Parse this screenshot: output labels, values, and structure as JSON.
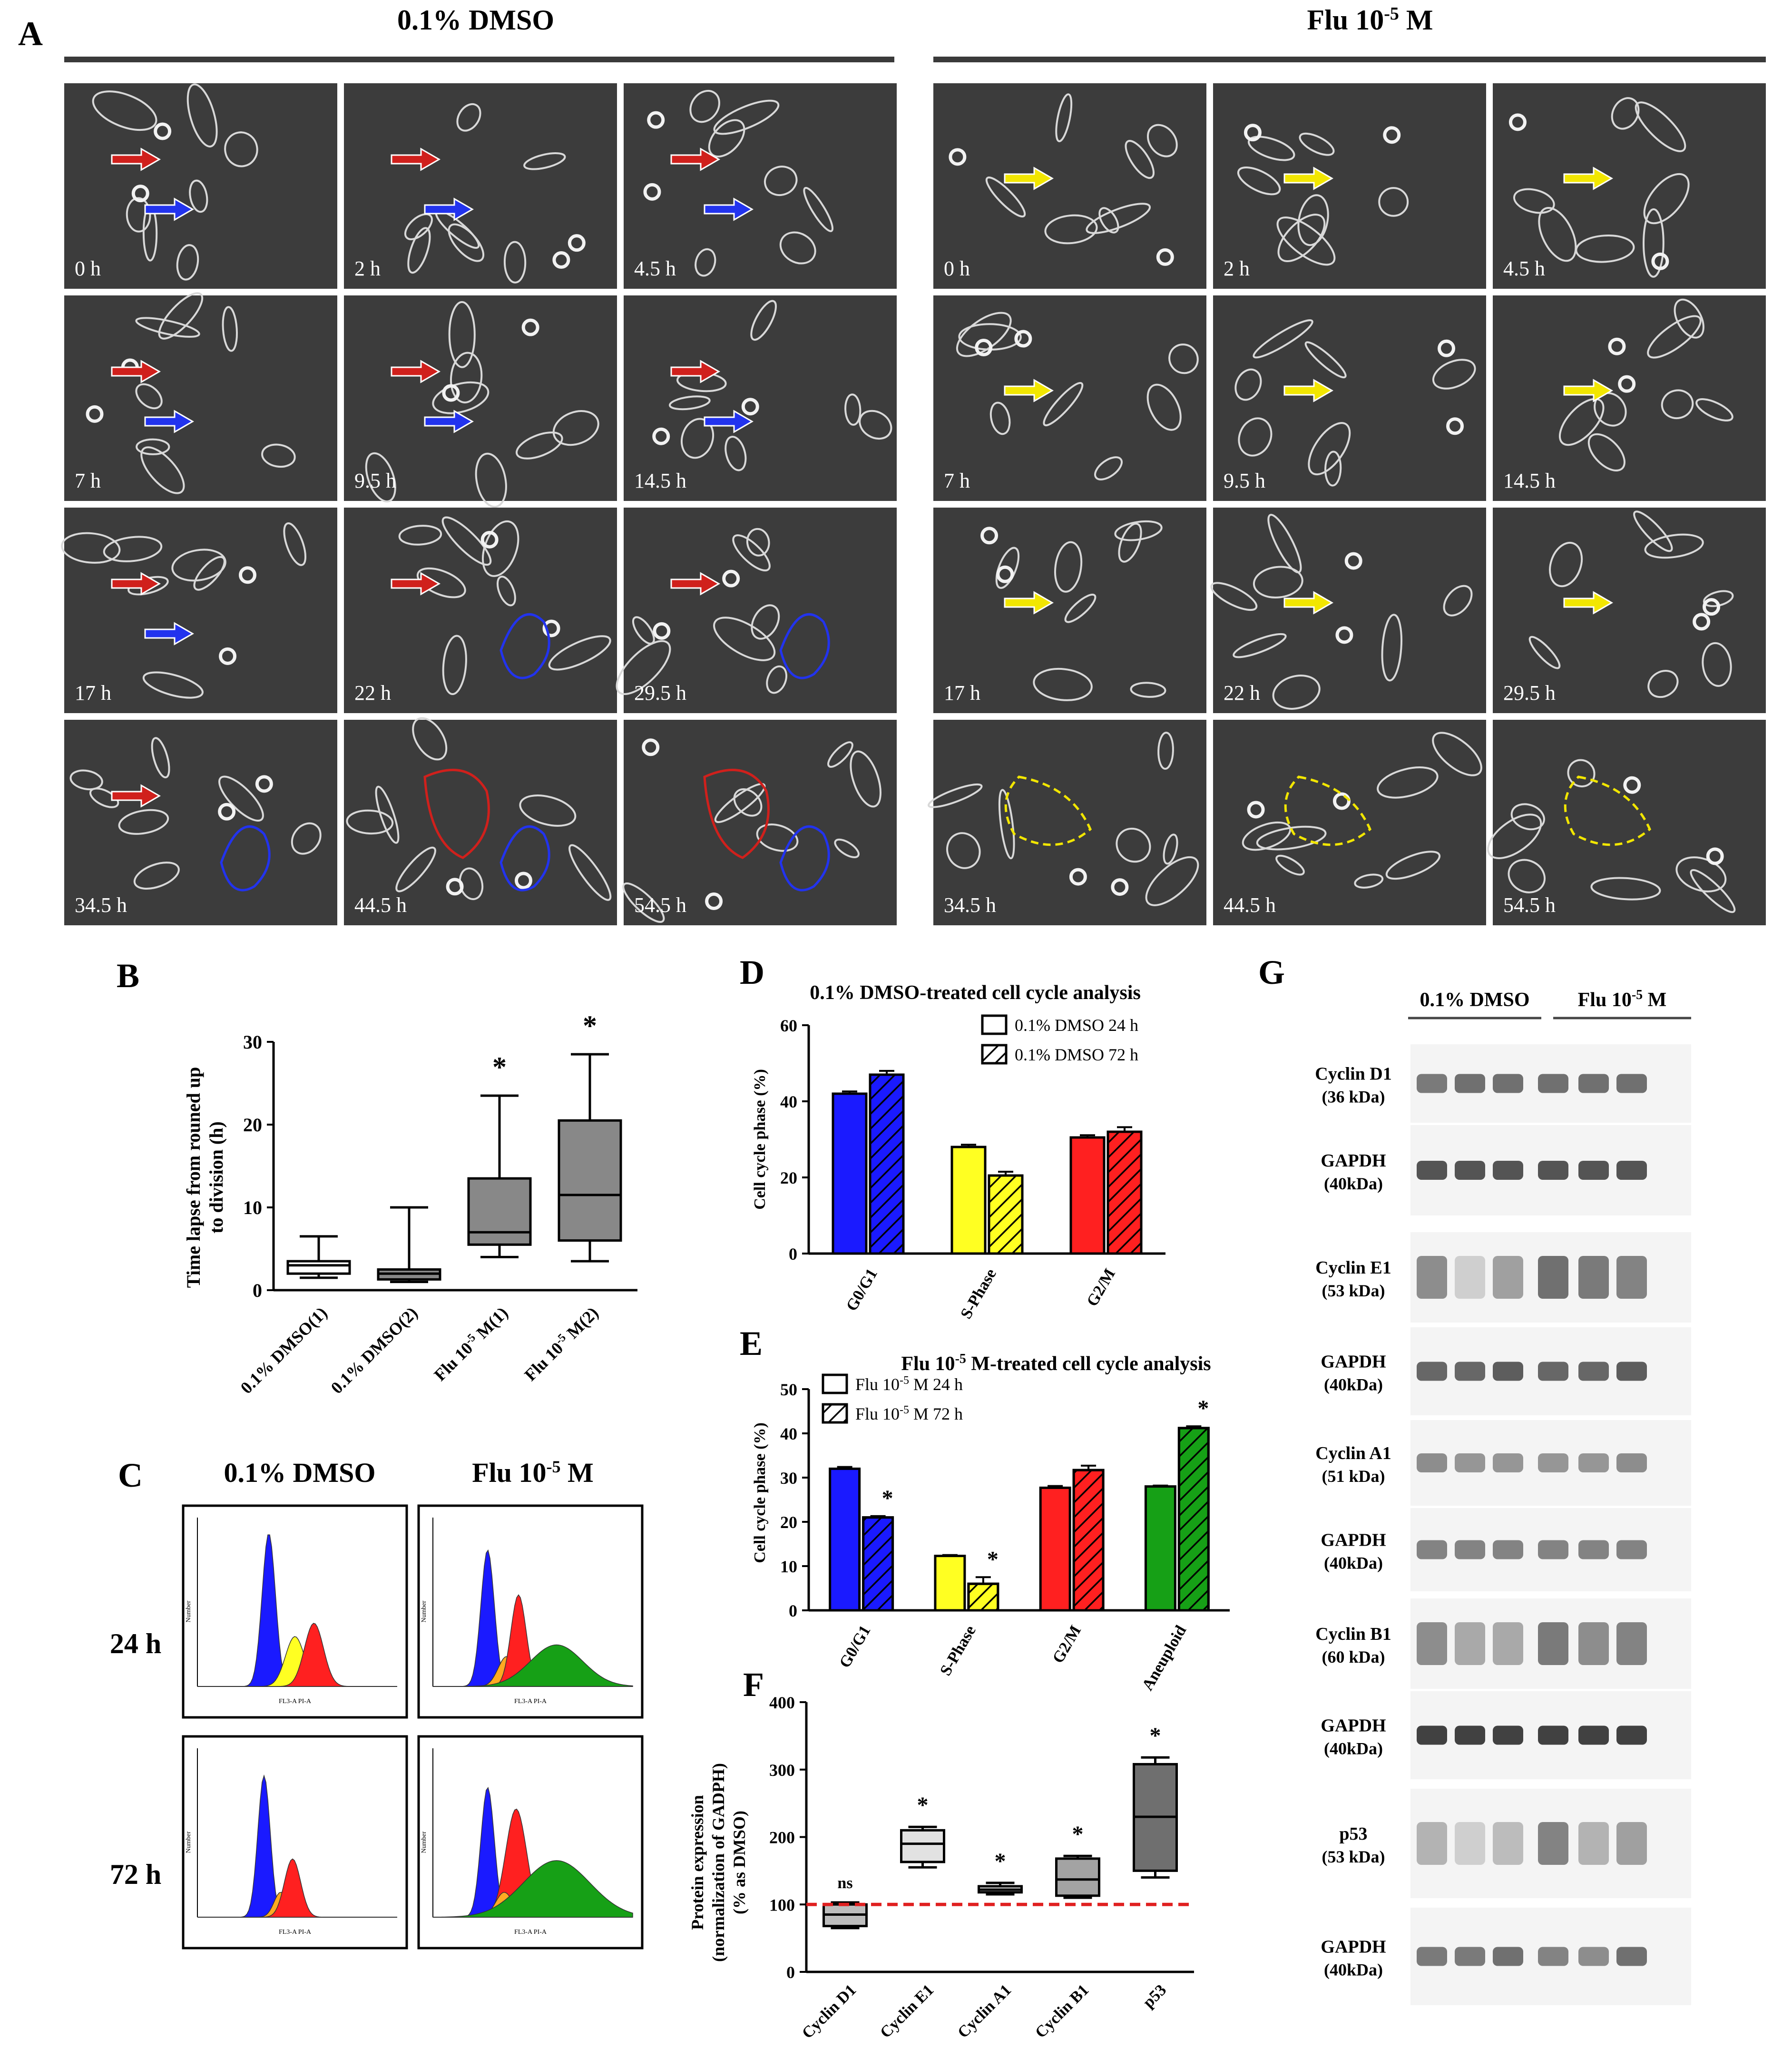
{
  "panelA": {
    "letter": "A",
    "dmso_label": "0.1% DMSO",
    "flu_label": "Flu 10",
    "flu_exp": "-5",
    "flu_unit": " M",
    "dmso_times": [
      "0 h",
      "2 h",
      "4.5 h",
      "7 h",
      "9.5 h",
      "14.5 h",
      "17 h",
      "22 h",
      "29.5 h",
      "34.5 h",
      "44.5 h",
      "54.5 h"
    ],
    "flu_times": [
      "0 h",
      "2 h",
      "4.5 h",
      "7 h",
      "9.5 h",
      "14.5 h",
      "17 h",
      "22 h",
      "29.5 h",
      "34.5 h",
      "44.5 h",
      "54.5 h"
    ],
    "arrow_colors": {
      "dmso_cell1": "#d0201c",
      "dmso_cell2": "#2233ee",
      "flu_cell": "#f2e600"
    }
  },
  "panelB": {
    "letter": "B",
    "ylabel_line1": "Time lapse from rouned up",
    "ylabel_line2": "to division (h)",
    "yticks": [
      "0",
      "10",
      "20",
      "30"
    ],
    "categories": [
      "0.1% DMSO(1)",
      "0.1% DMSO(2)",
      "Flu 10",
      "Flu 10"
    ],
    "category_exp": [
      "",
      "",
      "-5",
      "-5"
    ],
    "category_suffix": [
      "",
      "",
      " M(1)",
      " M(2)"
    ],
    "star": "*"
  },
  "panelC": {
    "letter": "C",
    "col_labels": [
      "0.1% DMSO",
      "Flu 10"
    ],
    "flu_exp": "-5",
    "flu_unit": " M",
    "row_labels": [
      "24 h",
      "72 h"
    ],
    "hist_xlabel": "FL3-A PI-A",
    "hist_ylabel": "Number"
  },
  "panelD": {
    "letter": "D",
    "title": "0.1% DMSO-treated cell cycle analysis",
    "ylabel": "Cell cycle phase (%)",
    "yticks": [
      "0",
      "20",
      "40",
      "60"
    ],
    "categories": [
      "G0/G1",
      "S-Phase",
      "G2/M"
    ],
    "legend": [
      "0.1% DMSO 24 h",
      "0.1% DMSO 72 h"
    ]
  },
  "panelE": {
    "letter": "E",
    "title_pre": "Flu 10",
    "title_exp": "-5",
    "title_post": " M-treated cell cycle analysis",
    "ylabel": "Cell cycle phase (%)",
    "yticks": [
      "0",
      "10",
      "20",
      "30",
      "40",
      "50"
    ],
    "categories": [
      "G0/G1",
      "S-Phase",
      "G2/M",
      "Aneuploid"
    ],
    "legend_pre": "Flu 10",
    "legend_exp": "-5",
    "legend_post": [
      "M 24 h",
      "M 72 h"
    ],
    "star": "*"
  },
  "panelF": {
    "letter": "F",
    "ylabel_lines": [
      "Protein expression",
      "(normalization of GADPH)",
      "(% as DMSO)"
    ],
    "yticks": [
      "0",
      "100",
      "200",
      "300",
      "400"
    ],
    "categories": [
      "Cyclin D1",
      "Cyclin E1",
      "Cyclin A1",
      "Cyclin B1",
      "p53"
    ],
    "annotations": [
      "ns",
      "*",
      "*",
      "*",
      "*"
    ]
  },
  "panelG": {
    "letter": "G",
    "groups": [
      "0.1% DMSO",
      "Flu 10"
    ],
    "flu_exp": "-5",
    "flu_unit": " M",
    "rows": [
      {
        "name": "Cyclin D1",
        "size": "(36 kDa)"
      },
      {
        "name": "GAPDH",
        "size": "(40kDa)"
      },
      {
        "name": "Cyclin E1",
        "size": "(53 kDa)"
      },
      {
        "name": "GAPDH",
        "size": "(40kDa)"
      },
      {
        "name": "Cyclin A1",
        "size": "(51 kDa)"
      },
      {
        "name": "GAPDH",
        "size": "(40kDa)"
      },
      {
        "name": "Cyclin B1",
        "size": "(60 kDa)"
      },
      {
        "name": "GAPDH",
        "size": "(40kDa)"
      },
      {
        "name": "p53",
        "size": "(53 kDa)"
      },
      {
        "name": "GAPDH",
        "size": "(40kDa)"
      }
    ]
  },
  "chart_data": [
    {
      "panel": "B",
      "type": "box",
      "categories": [
        "0.1% DMSO(1)",
        "0.1% DMSO(2)",
        "Flu 10-5 M(1)",
        "Flu 10-5 M(2)"
      ],
      "ylabel": "Time lapse from rouned up to division (h)",
      "ylim": [
        0,
        30
      ],
      "boxes": [
        {
          "min": 1.5,
          "q1": 2.0,
          "median": 3.0,
          "q3": 3.5,
          "max": 6.5,
          "star": false
        },
        {
          "min": 1.0,
          "q1": 1.3,
          "median": 2.0,
          "q3": 2.5,
          "max": 10.0,
          "star": false
        },
        {
          "min": 4.0,
          "q1": 5.5,
          "median": 7.0,
          "q3": 13.5,
          "max": 23.5,
          "star": true
        },
        {
          "min": 3.5,
          "q1": 6.0,
          "median": 11.5,
          "q3": 20.5,
          "max": 28.5,
          "star": true
        }
      ]
    },
    {
      "panel": "D",
      "type": "bar",
      "title": "0.1% DMSO-treated cell cycle analysis",
      "ylabel": "Cell cycle phase (%)",
      "ylim": [
        0,
        60
      ],
      "categories": [
        "G0/G1",
        "S-Phase",
        "G2/M"
      ],
      "colors": [
        "#1a1aff",
        "#ffff22",
        "#ff2020"
      ],
      "series": [
        {
          "name": "0.1% DMSO 24 h",
          "values": [
            42.0,
            28.0,
            30.5
          ],
          "errors": [
            0.6,
            0.6,
            0.6
          ]
        },
        {
          "name": "0.1% DMSO 72 h",
          "values": [
            47.0,
            20.5,
            32.0
          ],
          "errors": [
            1.0,
            1.0,
            1.2
          ]
        }
      ]
    },
    {
      "panel": "E",
      "type": "bar",
      "title": "Flu 10-5 M-treated cell cycle analysis",
      "ylabel": "Cell cycle phase (%)",
      "ylim": [
        0,
        50
      ],
      "categories": [
        "G0/G1",
        "S-Phase",
        "G2/M",
        "Aneuploid"
      ],
      "colors": [
        "#1a1aff",
        "#ffff22",
        "#ff2020",
        "#16a016"
      ],
      "series": [
        {
          "name": "Flu 10-5 M 24 h",
          "values": [
            32.0,
            12.3,
            27.7,
            28.0
          ],
          "errors": [
            0.4,
            0.2,
            0.4,
            0.2
          ]
        },
        {
          "name": "Flu 10-5 M 72 h",
          "values": [
            21.0,
            6.0,
            31.7,
            41.2
          ],
          "errors": [
            0.3,
            1.5,
            1.0,
            0.4
          ]
        }
      ],
      "stars_72h": [
        true,
        true,
        false,
        true
      ]
    },
    {
      "panel": "F",
      "type": "box",
      "ylabel": "Protein expression (normalization of GADPH) (% as DMSO)",
      "ylim": [
        0,
        400
      ],
      "reference_line": 100,
      "categories": [
        "Cyclin D1",
        "Cyclin E1",
        "Cyclin A1",
        "Cyclin B1",
        "p53"
      ],
      "colors": [
        "#bdbdbd",
        "#e2e2e2",
        "#dcdcdc",
        "#a3a3a3",
        "#6f6f6f"
      ],
      "boxes": [
        {
          "min": 65,
          "q1": 68,
          "median": 85,
          "q3": 100,
          "max": 103
        },
        {
          "min": 155,
          "q1": 163,
          "median": 190,
          "q3": 210,
          "max": 215
        },
        {
          "min": 115,
          "q1": 118,
          "median": 122,
          "q3": 127,
          "max": 132
        },
        {
          "min": 110,
          "q1": 113,
          "median": 137,
          "q3": 168,
          "max": 172
        },
        {
          "min": 140,
          "q1": 150,
          "median": 230,
          "q3": 308,
          "max": 318
        }
      ],
      "annotations": [
        "ns",
        "*",
        "*",
        "*",
        "*"
      ]
    }
  ]
}
